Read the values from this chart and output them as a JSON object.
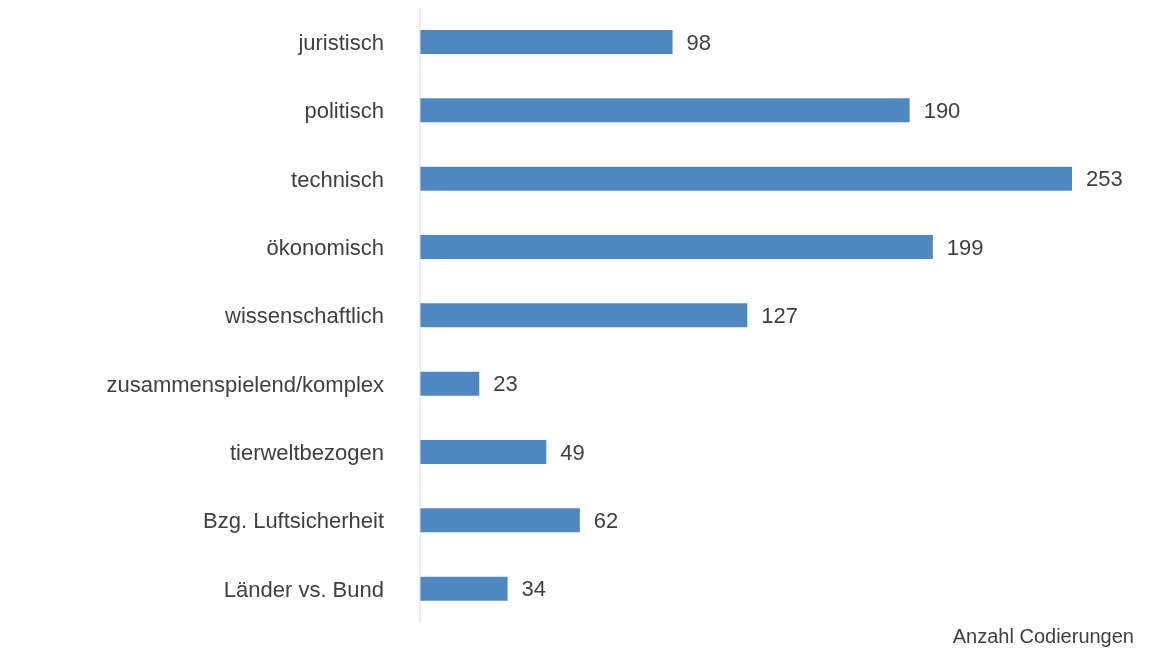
{
  "chart_data": {
    "type": "bar",
    "orientation": "horizontal",
    "xlabel": "Anzahl Codierungen",
    "categories": [
      "juristisch",
      "politisch",
      "technisch",
      "ökonomisch",
      "wissenschaftlich",
      "zusammenspielend/komplex",
      "tierweltbezogen",
      "Bzg. Luftsicherheit",
      "Länder vs. Bund"
    ],
    "values": [
      98,
      190,
      253,
      199,
      127,
      23,
      49,
      62,
      34
    ],
    "color": "#4f88c0",
    "data_labels": true
  }
}
